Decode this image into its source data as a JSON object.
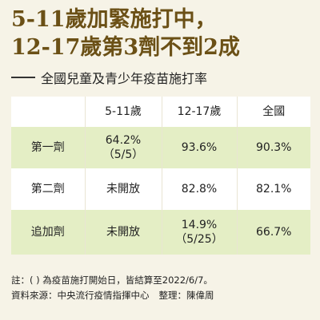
{
  "title_line1": "5-11歲加緊施打中，",
  "title_line2": "12-17歲第3劑不到2成",
  "subtitle": "全國兒童及青少年疫苗施打率",
  "colors": {
    "title": "#6b5016",
    "green_row": "#e4eec5",
    "background": "#f6f3e7"
  },
  "chart_data": {
    "type": "table",
    "columns": [
      "",
      "5-11歲",
      "12-17歲",
      "全國"
    ],
    "rows": [
      {
        "label": "第一劑",
        "cells": [
          [
            "64.2%",
            "（5/5）"
          ],
          [
            "93.6%"
          ],
          [
            "90.3%"
          ]
        ]
      },
      {
        "label": "第二劑",
        "cells": [
          [
            "未開放"
          ],
          [
            "82.8%"
          ],
          [
            "82.1%"
          ]
        ]
      },
      {
        "label": "追加劑",
        "cells": [
          [
            "未開放"
          ],
          [
            "14.9%",
            "（5/25）"
          ],
          [
            "66.7%"
          ]
        ]
      }
    ]
  },
  "note": "註：( ) 為疫苗施打開始日，皆結算至2022/6/7。",
  "source": "資料來源：中央流行疫情指揮中心",
  "editor": "整理：陳偉周"
}
